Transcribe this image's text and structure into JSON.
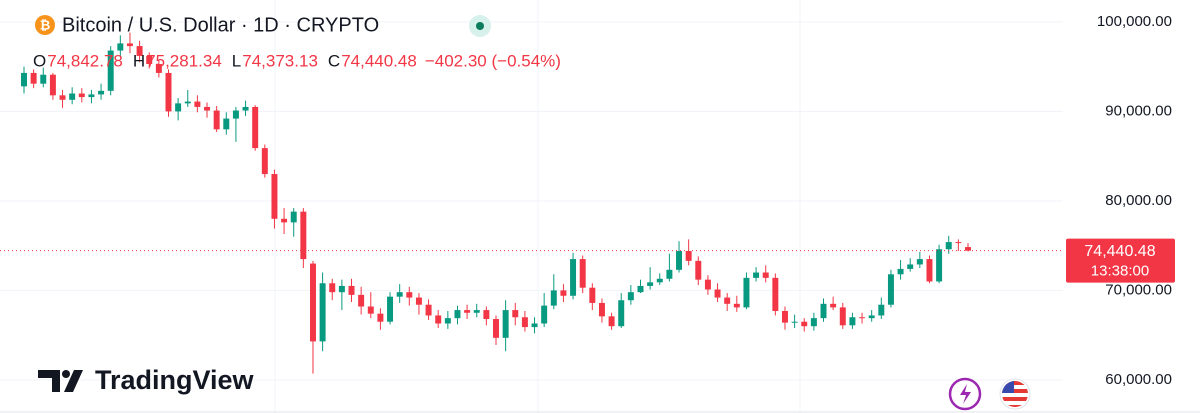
{
  "chart_data": {
    "type": "candlestick",
    "title": "Bitcoin / U.S. Dollar · 1D · CRYPTO",
    "legend": [
      {
        "key": "O",
        "value": "74,842.78"
      },
      {
        "key": "H",
        "value": "75,281.34"
      },
      {
        "key": "L",
        "value": "74,373.13"
      },
      {
        "key": "C",
        "value": "74,440.48"
      }
    ],
    "change": "−402.30 (−0.54%)",
    "brand": "TradingView",
    "up_color": "#089981",
    "down_color": "#f23645",
    "grid": true,
    "ylim": [
      56300,
      102450
    ],
    "yticks": [
      {
        "value": 60000,
        "label": "60,000.00"
      },
      {
        "value": 70000,
        "label": "70,000.00"
      },
      {
        "value": 80000,
        "label": "80,000.00"
      },
      {
        "value": 90000,
        "label": "90,000.00"
      },
      {
        "value": 100000,
        "label": "100,000.00"
      }
    ],
    "last_price": {
      "value": 74440.48,
      "label": "74,440.48"
    },
    "countdown": "13:38:00",
    "open": [
      92800,
      94300,
      93100,
      94100,
      91800,
      91300,
      92000,
      91600,
      91900,
      92300,
      96800,
      97600,
      97300,
      96200,
      95300,
      94300,
      90000,
      90900,
      91100,
      90500,
      90100,
      88000,
      89200,
      90100,
      90500,
      85900,
      83000,
      78000,
      77600,
      78800,
      73000,
      64300,
      70800,
      69800,
      70500,
      69500,
      68200,
      67400,
      66500,
      69300,
      69800,
      69200,
      68400,
      67200,
      66300,
      66900,
      67800,
      67500,
      67800,
      66800,
      64700,
      67800,
      67000,
      65900,
      66300,
      68300,
      70000,
      69400,
      73500,
      70300,
      68600,
      67100,
      66000,
      68900,
      69800,
      70500,
      70900,
      71300,
      72300,
      74400,
      73300,
      71200,
      70100,
      69200,
      68500,
      68100,
      71400,
      72000,
      71400,
      67700,
      66400,
      66500,
      66000,
      66900,
      68500,
      68100,
      66100,
      67000,
      66900,
      67200,
      68400,
      71800,
      72400,
      72900,
      73500,
      71000,
      74600,
      75400,
      74842.78
    ],
    "high": [
      95000,
      94700,
      94900,
      94300,
      92400,
      92700,
      92600,
      92400,
      93100,
      97300,
      98500,
      98800,
      97900,
      96600,
      95700,
      94700,
      91500,
      92400,
      91800,
      91000,
      90600,
      89900,
      90500,
      91200,
      90700,
      86300,
      83500,
      79200,
      79200,
      79200,
      73300,
      72000,
      71300,
      71200,
      71300,
      70400,
      69800,
      68000,
      69800,
      70700,
      70400,
      69700,
      69000,
      67800,
      67700,
      68300,
      68400,
      68500,
      68200,
      67200,
      68900,
      68600,
      67700,
      67000,
      69700,
      71800,
      70700,
      74200,
      73900,
      70800,
      69100,
      67500,
      69700,
      70600,
      71200,
      72600,
      71900,
      74100,
      75500,
      75700,
      73800,
      71700,
      70800,
      69700,
      69400,
      72000,
      72600,
      72800,
      71900,
      68200,
      67300,
      66900,
      67500,
      69100,
      69300,
      68600,
      67500,
      67500,
      67800,
      69200,
      72300,
      73400,
      73600,
      74300,
      73900,
      75100,
      76100,
      75700,
      75281.34
    ],
    "low": [
      92000,
      92600,
      92700,
      91300,
      90400,
      90800,
      91000,
      90900,
      91300,
      91800,
      96200,
      96500,
      95500,
      94800,
      93800,
      89400,
      89000,
      90500,
      89900,
      89300,
      87700,
      87400,
      86600,
      89500,
      85600,
      82600,
      76900,
      76300,
      76000,
      72500,
      60700,
      63200,
      68900,
      67800,
      68700,
      67300,
      66900,
      65600,
      66200,
      68600,
      68300,
      67300,
      66700,
      65800,
      65700,
      66200,
      66800,
      67000,
      66100,
      63900,
      63200,
      66100,
      65400,
      65200,
      65900,
      67900,
      68700,
      69000,
      69700,
      67800,
      66400,
      65600,
      65800,
      68400,
      69700,
      70100,
      70600,
      71000,
      72000,
      72800,
      70600,
      69500,
      68700,
      67700,
      67600,
      67900,
      71000,
      70900,
      67200,
      65600,
      65800,
      65400,
      65500,
      66500,
      67800,
      65700,
      65700,
      66300,
      66500,
      66800,
      68100,
      71200,
      72100,
      72500,
      70800,
      70800,
      74100,
      74400,
      74373.13
    ],
    "close": [
      94300,
      93100,
      94100,
      91800,
      91300,
      92000,
      91600,
      91900,
      92300,
      96800,
      97600,
      97300,
      96200,
      95300,
      94300,
      90000,
      90900,
      91100,
      90500,
      90100,
      88000,
      89200,
      90100,
      90500,
      85900,
      83000,
      78000,
      77600,
      78800,
      73500,
      64300,
      70800,
      69800,
      70500,
      69500,
      68200,
      67400,
      66500,
      69300,
      69800,
      69200,
      68400,
      67200,
      66300,
      66900,
      67800,
      67500,
      67800,
      66800,
      64700,
      67800,
      67000,
      65900,
      66300,
      68300,
      70000,
      69400,
      73500,
      70300,
      68600,
      67100,
      66000,
      68900,
      69800,
      70500,
      70900,
      71300,
      72300,
      74400,
      73300,
      71200,
      70100,
      69200,
      68500,
      68100,
      71400,
      72000,
      71400,
      67700,
      66400,
      66500,
      66000,
      66900,
      68500,
      68100,
      66100,
      67000,
      66900,
      67200,
      68400,
      71800,
      72400,
      72900,
      73500,
      71000,
      74600,
      75400,
      75300,
      74440.48
    ]
  }
}
